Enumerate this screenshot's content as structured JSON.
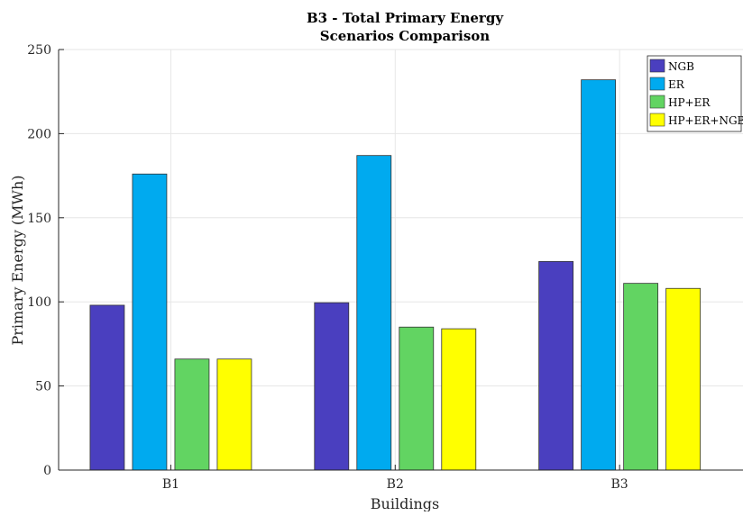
{
  "chart_data": {
    "type": "bar",
    "title": [
      "B3 - Total Primary Energy",
      "Scenarios Comparison"
    ],
    "xlabel": "Buildings",
    "ylabel": "Primary Energy (MWh)",
    "categories": [
      "B1",
      "B2",
      "B3"
    ],
    "ylim": [
      0,
      250
    ],
    "yticks": [
      0,
      50,
      100,
      150,
      200,
      250
    ],
    "grid": true,
    "legend_position": "top-right",
    "series": [
      {
        "name": "NGB",
        "color": "#4a3fbf",
        "values": [
          98,
          99.5,
          124
        ]
      },
      {
        "name": "ER",
        "color": "#00aaef",
        "values": [
          176,
          187,
          232
        ]
      },
      {
        "name": "HP+ER",
        "color": "#62d462",
        "values": [
          66,
          85,
          111
        ]
      },
      {
        "name": "HP+ER+NGB",
        "color": "#ffff00",
        "values": [
          66,
          84,
          108
        ]
      }
    ]
  }
}
